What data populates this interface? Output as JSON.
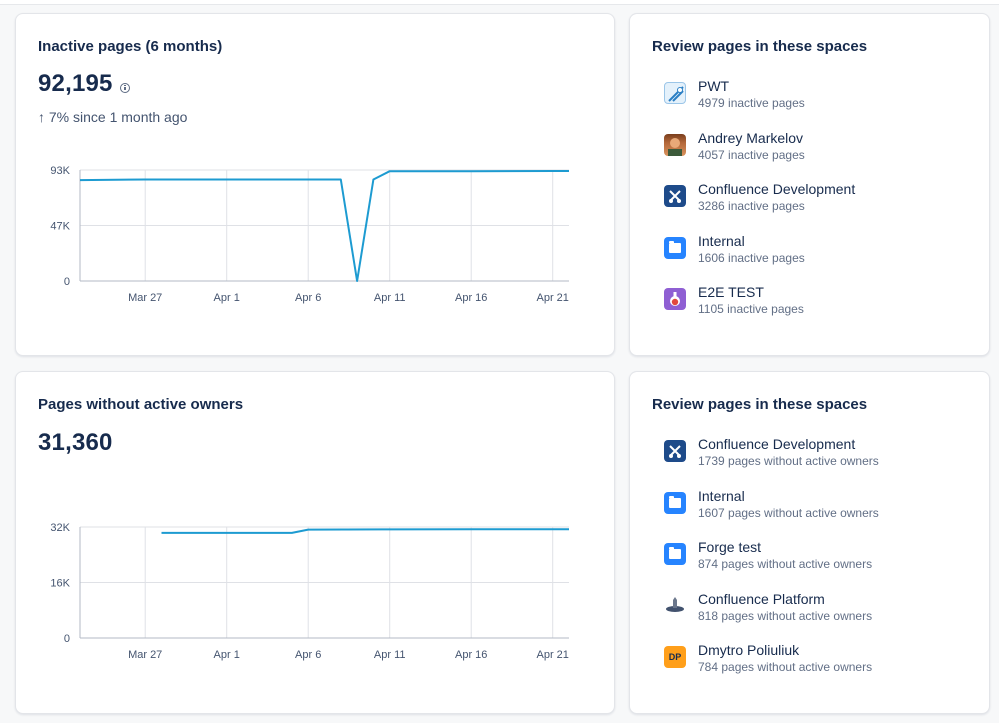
{
  "inactive": {
    "title": "Inactive pages (6 months)",
    "total": "92,195",
    "trend": "↑ 7% since 1 month ago",
    "spaces_title": "Review pages in these spaces",
    "spaces": [
      {
        "name": "PWT",
        "sub": "4979 inactive pages",
        "icon": "pwt-space-icon"
      },
      {
        "name": "Andrey Markelov",
        "sub": "4057 inactive pages",
        "icon": "user-avatar-icon"
      },
      {
        "name": "Confluence Development",
        "sub": "3286 inactive pages",
        "icon": "confluence-dev-space-icon"
      },
      {
        "name": "Internal",
        "sub": "1606 inactive pages",
        "icon": "folder-space-icon"
      },
      {
        "name": "E2E TEST",
        "sub": "1105 inactive pages",
        "icon": "potion-space-icon"
      }
    ]
  },
  "owners": {
    "title": "Pages without active owners",
    "total": "31,360",
    "spaces_title": "Review pages in these spaces",
    "spaces": [
      {
        "name": "Confluence Development",
        "sub": "1739 pages without active owners",
        "icon": "confluence-dev-space-icon"
      },
      {
        "name": "Internal",
        "sub": "1607 pages without active owners",
        "icon": "folder-space-icon"
      },
      {
        "name": "Forge test",
        "sub": "874 pages without active owners",
        "icon": "folder-space-icon"
      },
      {
        "name": "Confluence Platform",
        "sub": "818 pages without active owners",
        "icon": "platform-space-icon"
      },
      {
        "name": "Dmytro Poliuliuk",
        "sub": "784 pages without active owners",
        "icon": "initials-avatar-icon",
        "initials": "DP"
      }
    ]
  },
  "chart_data": [
    {
      "type": "line",
      "x_ticks": [
        "Mar 27",
        "Apr 1",
        "Apr 6",
        "Apr 11",
        "Apr 16",
        "Apr 21"
      ],
      "y_ticks": [
        "93K",
        "47K",
        "0"
      ],
      "ylim": [
        0,
        93000
      ],
      "grid": true,
      "color": "#1d9bd1",
      "series": [
        {
          "x": [
            "Mar 23",
            "Mar 27",
            "Apr 1",
            "Apr 6",
            "Apr 8",
            "Apr 9",
            "Apr 10",
            "Apr 11",
            "Apr 16",
            "Apr 21",
            "Apr 22"
          ],
          "y": [
            84500,
            85000,
            85000,
            85000,
            85000,
            0,
            85000,
            92000,
            92000,
            92200,
            92195
          ]
        }
      ]
    },
    {
      "type": "line",
      "x_ticks": [
        "Mar 27",
        "Apr 1",
        "Apr 6",
        "Apr 11",
        "Apr 16",
        "Apr 21"
      ],
      "y_ticks": [
        "32K",
        "16K",
        "0"
      ],
      "ylim": [
        0,
        32000
      ],
      "grid": true,
      "color": "#1d9bd1",
      "series": [
        {
          "x": [
            "Mar 28",
            "Apr 1",
            "Apr 5",
            "Apr 6",
            "Apr 11",
            "Apr 16",
            "Apr 21",
            "Apr 22"
          ],
          "y": [
            30300,
            30300,
            30300,
            31250,
            31300,
            31330,
            31360,
            31360
          ]
        }
      ]
    }
  ]
}
